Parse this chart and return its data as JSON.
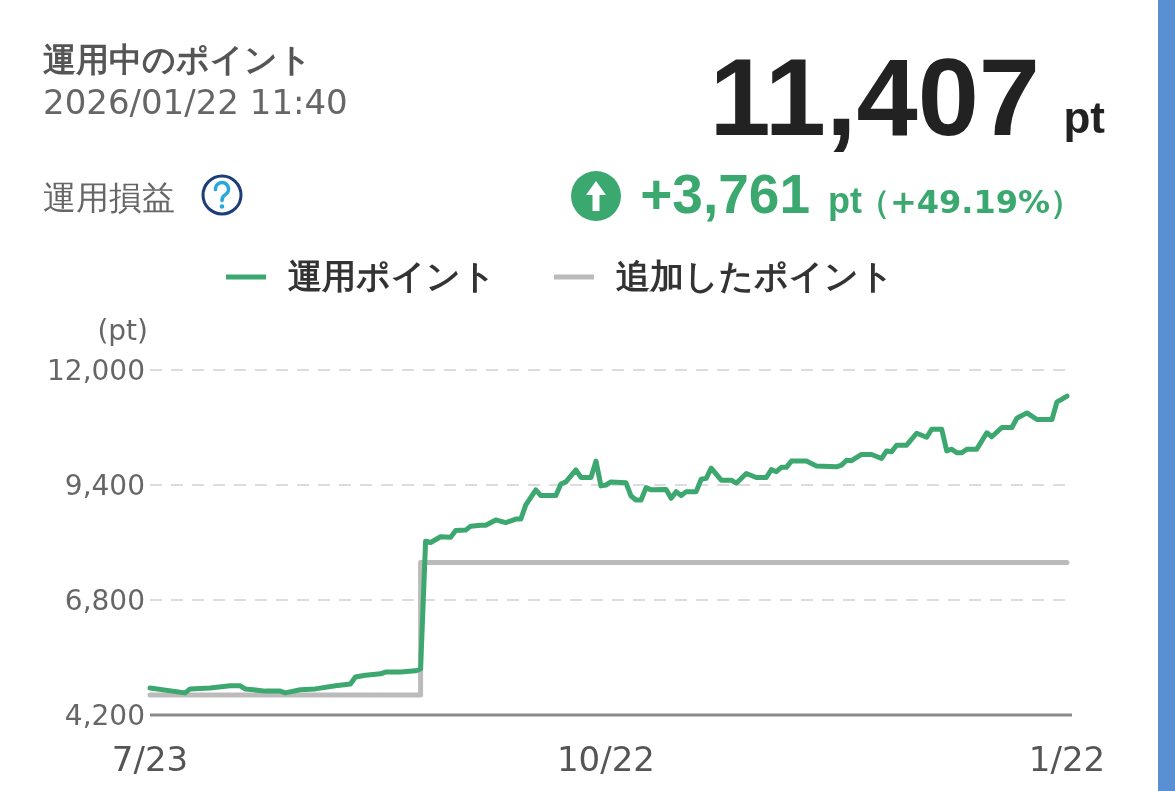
{
  "chart_data": {
    "type": "line",
    "title": "運用中のポイント",
    "subtitle": "2026/01/22 11:40",
    "annotations": [
      "11,407",
      "pt",
      "運用損益",
      "+3,761",
      "pt",
      "（+49.19%）"
    ],
    "ylabel": "(pt)",
    "legend": "top",
    "grid": "y",
    "xlim": [
      "2025-07-23",
      "2026-01-23"
    ],
    "xticks": [
      {
        "value": "2025-07-23",
        "label": "7/23"
      },
      {
        "value": "2025-10-22",
        "label": "10/22"
      },
      {
        "value": "2026-01-22",
        "label": "1/22"
      }
    ],
    "ylim": [
      4200,
      12000
    ],
    "yticks": [
      {
        "value": 4200,
        "label": "4,200"
      },
      {
        "value": 6800,
        "label": "6,800"
      },
      {
        "value": 9400,
        "label": "9,400"
      },
      {
        "value": 12000,
        "label": "12,000"
      }
    ],
    "series": [
      {
        "name": "運用ポイント",
        "color": "#3ca86f",
        "x": [
          "2025-07-23",
          "2025-07-30",
          "2025-07-31",
          "2025-08-04",
          "2025-08-08",
          "2025-08-10",
          "2025-08-11",
          "2025-08-15",
          "2025-08-18",
          "2025-08-19",
          "2025-08-22",
          "2025-08-25",
          "2025-08-29",
          "2025-09-01",
          "2025-09-02",
          "2025-09-04",
          "2025-09-07",
          "2025-09-08",
          "2025-09-11",
          "2025-09-14",
          "2025-09-15",
          "2025-09-16",
          "2025-09-17",
          "2025-09-19",
          "2025-09-21",
          "2025-09-22",
          "2025-09-24",
          "2025-09-25",
          "2025-09-27",
          "2025-09-28",
          "2025-09-30",
          "2025-10-02",
          "2025-10-04",
          "2025-10-05",
          "2025-10-06",
          "2025-10-08",
          "2025-10-09",
          "2025-10-12",
          "2025-10-13",
          "2025-10-14",
          "2025-10-16",
          "2025-10-17",
          "2025-10-19",
          "2025-10-20",
          "2025-10-21",
          "2025-10-22",
          "2025-10-23",
          "2025-10-26",
          "2025-10-27",
          "2025-10-28",
          "2025-10-29",
          "2025-10-30",
          "2025-10-31",
          "2025-11-03",
          "2025-11-04",
          "2025-11-05",
          "2025-11-06",
          "2025-11-07",
          "2025-11-09",
          "2025-11-10",
          "2025-11-11",
          "2025-11-12",
          "2025-11-14",
          "2025-11-16",
          "2025-11-17",
          "2025-11-19",
          "2025-11-21",
          "2025-11-23",
          "2025-11-24",
          "2025-11-25",
          "2025-11-26",
          "2025-11-27",
          "2025-11-28",
          "2025-12-01",
          "2025-12-03",
          "2025-12-07",
          "2025-12-08",
          "2025-12-09",
          "2025-12-10",
          "2025-12-12",
          "2025-12-14",
          "2025-12-16",
          "2025-12-17",
          "2025-12-18",
          "2025-12-19",
          "2025-12-21",
          "2025-12-23",
          "2025-12-25",
          "2025-12-26",
          "2025-12-28",
          "2025-12-29",
          "2025-12-30",
          "2025-12-31",
          "2026-01-01",
          "2026-01-02",
          "2026-01-04",
          "2026-01-06",
          "2026-01-07",
          "2026-01-09",
          "2026-01-11",
          "2026-01-12",
          "2026-01-14",
          "2026-01-16",
          "2026-01-19",
          "2026-01-20",
          "2026-01-21",
          "2026-01-22"
        ],
        "values": [
          4810,
          4700,
          4790,
          4810,
          4860,
          4860,
          4790,
          4740,
          4740,
          4700,
          4770,
          4790,
          4860,
          4900,
          5060,
          5100,
          5130,
          5170,
          5170,
          5200,
          5240,
          8130,
          8100,
          8230,
          8220,
          8370,
          8380,
          8470,
          8490,
          8490,
          8610,
          8550,
          8630,
          8630,
          8950,
          9290,
          9160,
          9160,
          9420,
          9470,
          9740,
          9570,
          9570,
          9940,
          9380,
          9400,
          9470,
          9450,
          9150,
          9060,
          9060,
          9340,
          9290,
          9300,
          9100,
          9250,
          9160,
          9250,
          9250,
          9530,
          9550,
          9780,
          9510,
          9510,
          9440,
          9660,
          9570,
          9570,
          9750,
          9700,
          9800,
          9800,
          9940,
          9940,
          9830,
          9810,
          9850,
          9960,
          9950,
          10090,
          10090,
          10000,
          10170,
          10150,
          10300,
          10300,
          10570,
          10480,
          10660,
          10660,
          10170,
          10210,
          10130,
          10130,
          10210,
          10210,
          10580,
          10490,
          10700,
          10700,
          10910,
          11030,
          10880,
          10880,
          11280,
          11340,
          11410
        ]
      },
      {
        "name": "追加したポイント",
        "type": "step",
        "color": "#bbbbbb",
        "x": [
          "2025-07-23",
          "2025-09-15",
          "2026-01-22"
        ],
        "values": [
          4650,
          7650,
          7650
        ]
      }
    ]
  }
}
